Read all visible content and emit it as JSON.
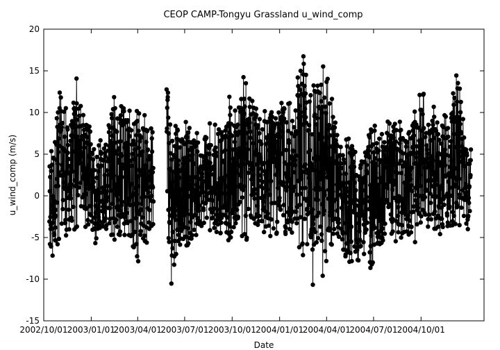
{
  "chart_data": {
    "type": "scatter",
    "title": "CEOP CAMP-Tongyu Grassland  u_wind_comp",
    "xlabel": "Date",
    "ylabel": "u_wind_comp (m/s)",
    "ylim": [
      -15,
      20
    ],
    "xlim": [
      "2002-10-01",
      "2005-01-31"
    ],
    "y_ticks": [
      -15,
      -10,
      -5,
      0,
      5,
      10,
      15,
      20
    ],
    "x_ticks": [
      {
        "date": "2002-10-01",
        "label": "2002/10/01"
      },
      {
        "date": "2003-01-01",
        "label": "2003/01/01"
      },
      {
        "date": "2003-04-01",
        "label": "2003/04/01"
      },
      {
        "date": "2003-07-01",
        "label": "2003/07/01"
      },
      {
        "date": "2003-10-01",
        "label": "2003/10/01"
      },
      {
        "date": "2004-01-01",
        "label": "2004/01/01"
      },
      {
        "date": "2004-04-01",
        "label": "2004/04/01"
      },
      {
        "date": "2004-07-01",
        "label": "2004/07/01"
      },
      {
        "date": "2004-10-01",
        "label": "2004/10/01"
      }
    ],
    "grid": false,
    "series": [
      {
        "color": "#000000",
        "marker": "filled-circle",
        "connected": true,
        "x": [
          "2002-10-12",
          "2002-10-22",
          "2002-11-01",
          "2002-11-12",
          "2002-11-22",
          "2002-12-02",
          "2002-12-12",
          "2002-12-22",
          "2003-01-02",
          "2003-01-12",
          "2003-01-22",
          "2003-02-02",
          "2003-02-12",
          "2003-02-22",
          "2003-03-02",
          "2003-03-12",
          "2003-03-22",
          "2003-04-02",
          "2003-04-12",
          "2003-04-22",
          "2003-05-02",
          "2003-05-27",
          "2003-06-06",
          "2003-06-16",
          "2003-06-26",
          "2003-07-06",
          "2003-07-16",
          "2003-07-26",
          "2003-08-06",
          "2003-08-16",
          "2003-08-26",
          "2003-09-06",
          "2003-09-16",
          "2003-09-26",
          "2003-10-06",
          "2003-10-16",
          "2003-10-26",
          "2003-11-06",
          "2003-11-16",
          "2003-11-26",
          "2003-12-06",
          "2003-12-16",
          "2003-12-26",
          "2004-01-06",
          "2004-01-16",
          "2004-01-26",
          "2004-02-06",
          "2004-02-16",
          "2004-02-26",
          "2004-03-06",
          "2004-03-16",
          "2004-03-26",
          "2004-04-06",
          "2004-04-16",
          "2004-04-26",
          "2004-05-06",
          "2004-05-16",
          "2004-05-26",
          "2004-06-06",
          "2004-06-16",
          "2004-06-26",
          "2004-07-06",
          "2004-07-16",
          "2004-07-26",
          "2004-08-06",
          "2004-08-16",
          "2004-08-26",
          "2004-09-06",
          "2004-09-16",
          "2004-09-26",
          "2004-10-06",
          "2004-10-16",
          "2004-10-26",
          "2004-11-06",
          "2004-11-16",
          "2004-11-26",
          "2004-12-06",
          "2004-12-16",
          "2004-12-26",
          "2005-01-06"
        ],
        "y_max": [
          5,
          9,
          13,
          11,
          9,
          15.6,
          11,
          9,
          8,
          7,
          7,
          8,
          14.4,
          9,
          12,
          9,
          12,
          10,
          10,
          9,
          9,
          13,
          12,
          8,
          9,
          9,
          8,
          8,
          7,
          9,
          8,
          10,
          9,
          12,
          11,
          11,
          16,
          12,
          11,
          9,
          11,
          11,
          9,
          12,
          13,
          9,
          15,
          18,
          13,
          15,
          14,
          16,
          15,
          10,
          7,
          7,
          7,
          7,
          6,
          7,
          8,
          9,
          8,
          9,
          10,
          9,
          9,
          8,
          10,
          12,
          13,
          9,
          11,
          9,
          11,
          8,
          15,
          13,
          7,
          6
        ],
        "y_min": [
          -7.5,
          -8,
          -6,
          -5,
          -5,
          -4,
          -3,
          -4,
          -5,
          -6,
          -5,
          -4,
          -6,
          -7,
          -7,
          -5,
          -6,
          -8,
          -7,
          -6,
          -5,
          -8,
          -11,
          -7,
          -6,
          -6,
          -5,
          -5,
          -5,
          -5,
          -4,
          -5,
          -4,
          -6,
          -5,
          -5,
          -6,
          -5,
          -4,
          -4,
          -5,
          -5,
          -5,
          -5,
          -6,
          -5,
          -6,
          -8,
          -9,
          -11,
          -10,
          -11,
          -8,
          -6,
          -7,
          -8,
          -9,
          -8,
          -8,
          -7,
          -9,
          -7,
          -6,
          -5,
          -5,
          -6,
          -5,
          -5,
          -6,
          -5,
          -5,
          -4,
          -4,
          -5,
          -4,
          -4,
          -4,
          -4,
          -5,
          -3
        ]
      }
    ],
    "data_gap": [
      "2003-05-01",
      "2003-05-22"
    ]
  }
}
